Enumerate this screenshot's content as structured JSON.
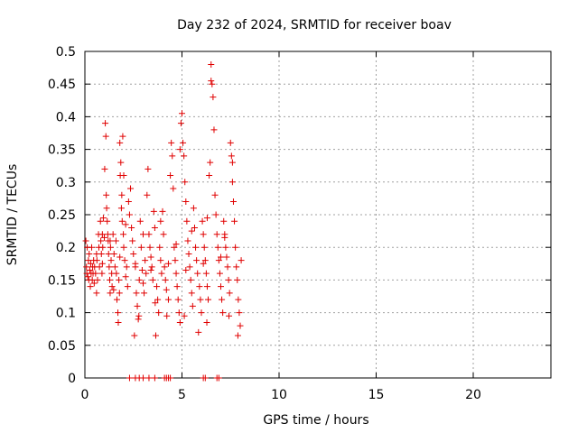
{
  "chart_data": {
    "type": "scatter",
    "title": "Day 232 of 2024, SRMTID for receiver boav",
    "xlabel": "GPS time / hours",
    "ylabel": "SRMTID / TECUs",
    "xlim": [
      0,
      24
    ],
    "ylim": [
      0,
      0.5
    ],
    "x_ticks": [
      0,
      5,
      10,
      15,
      20
    ],
    "x_tick_labels": [
      "0",
      "5",
      "10",
      "15",
      "20"
    ],
    "y_ticks": [
      0,
      0.05,
      0.1,
      0.15,
      0.2,
      0.25,
      0.3,
      0.35,
      0.4,
      0.45,
      0.5
    ],
    "y_tick_labels": [
      "0",
      "0.05",
      "0.1",
      "0.15",
      "0.2",
      "0.25",
      "0.3",
      "0.35",
      "0.4",
      "0.45",
      "0.5"
    ],
    "grid": true,
    "marker": "+",
    "color": "#e00000",
    "series": [
      {
        "points": [
          [
            0.05,
            0.21
          ],
          [
            0.08,
            0.17
          ],
          [
            0.1,
            0.16
          ],
          [
            0.12,
            0.2
          ],
          [
            0.15,
            0.155
          ],
          [
            0.18,
            0.18
          ],
          [
            0.2,
            0.15
          ],
          [
            0.22,
            0.19
          ],
          [
            0.25,
            0.165
          ],
          [
            0.28,
            0.14
          ],
          [
            0.3,
            0.175
          ],
          [
            0.32,
            0.16
          ],
          [
            0.35,
            0.2
          ],
          [
            0.38,
            0.15
          ],
          [
            0.4,
            0.17
          ],
          [
            0.42,
            0.16
          ],
          [
            0.45,
            0.18
          ],
          [
            0.48,
            0.145
          ],
          [
            0.5,
            0.17
          ],
          [
            0.55,
            0.16
          ],
          [
            0.6,
            0.19
          ],
          [
            0.62,
            0.18
          ],
          [
            0.65,
            0.15
          ],
          [
            0.7,
            0.22
          ],
          [
            0.72,
            0.2
          ],
          [
            0.75,
            0.17
          ],
          [
            0.8,
            0.24
          ],
          [
            0.82,
            0.21
          ],
          [
            0.85,
            0.19
          ],
          [
            0.88,
            0.16
          ],
          [
            0.9,
            0.22
          ],
          [
            0.92,
            0.2
          ],
          [
            0.95,
            0.245
          ],
          [
            1.0,
            0.215
          ],
          [
            1.02,
            0.32
          ],
          [
            1.05,
            0.39
          ],
          [
            1.08,
            0.37
          ],
          [
            1.1,
            0.28
          ],
          [
            1.12,
            0.26
          ],
          [
            1.15,
            0.24
          ],
          [
            1.18,
            0.22
          ],
          [
            1.2,
            0.21
          ],
          [
            1.22,
            0.19
          ],
          [
            1.25,
            0.17
          ],
          [
            1.28,
            0.15
          ],
          [
            1.3,
            0.13
          ],
          [
            1.32,
            0.2
          ],
          [
            1.35,
            0.18
          ],
          [
            1.38,
            0.16
          ],
          [
            1.4,
            0.14
          ],
          [
            1.45,
            0.22
          ],
          [
            1.5,
            0.19
          ],
          [
            1.55,
            0.17
          ],
          [
            1.6,
            0.21
          ],
          [
            1.62,
            0.16
          ],
          [
            1.65,
            0.12
          ],
          [
            1.7,
            0.1
          ],
          [
            1.72,
            0.085
          ],
          [
            1.75,
            0.15
          ],
          [
            1.78,
            0.13
          ],
          [
            1.8,
            0.36
          ],
          [
            1.82,
            0.31
          ],
          [
            1.85,
            0.33
          ],
          [
            1.88,
            0.26
          ],
          [
            1.9,
            0.28
          ],
          [
            1.92,
            0.24
          ],
          [
            1.95,
            0.37
          ],
          [
            1.98,
            0.22
          ],
          [
            2.0,
            0.2
          ],
          [
            2.05,
            0.18
          ],
          [
            2.1,
            0.155
          ],
          [
            2.15,
            0.17
          ],
          [
            2.2,
            0.14
          ],
          [
            2.25,
            0.27
          ],
          [
            2.3,
            0.25
          ],
          [
            2.35,
            0.29
          ],
          [
            2.4,
            0.23
          ],
          [
            2.45,
            0.21
          ],
          [
            2.5,
            0.19
          ],
          [
            2.55,
            0.065
          ],
          [
            2.6,
            0.17
          ],
          [
            2.65,
            0.13
          ],
          [
            2.7,
            0.11
          ],
          [
            2.75,
            0.09
          ],
          [
            2.8,
            0.15
          ],
          [
            2.85,
            0.24
          ],
          [
            2.9,
            0.2
          ],
          [
            2.95,
            0.165
          ],
          [
            3.0,
            0.145
          ],
          [
            3.05,
            0.13
          ],
          [
            3.1,
            0.18
          ],
          [
            3.15,
            0.16
          ],
          [
            3.2,
            0.28
          ],
          [
            3.25,
            0.32
          ],
          [
            3.3,
            0.22
          ],
          [
            3.35,
            0.2
          ],
          [
            3.4,
            0.185
          ],
          [
            3.45,
            0.17
          ],
          [
            3.5,
            0.15
          ],
          [
            3.55,
            0.255
          ],
          [
            3.6,
            0.23
          ],
          [
            3.65,
            0.065
          ],
          [
            3.7,
            0.14
          ],
          [
            3.75,
            0.12
          ],
          [
            3.8,
            0.1
          ],
          [
            3.85,
            0.2
          ],
          [
            3.9,
            0.18
          ],
          [
            3.95,
            0.16
          ],
          [
            4.0,
            0.255
          ],
          [
            4.05,
            0.22
          ],
          [
            4.1,
            0.17
          ],
          [
            4.15,
            0.15
          ],
          [
            4.2,
            0.135
          ],
          [
            4.3,
            0.12
          ],
          [
            4.4,
            0.31
          ],
          [
            4.45,
            0.36
          ],
          [
            4.5,
            0.34
          ],
          [
            4.55,
            0.29
          ],
          [
            4.6,
            0.2
          ],
          [
            4.65,
            0.18
          ],
          [
            4.7,
            0.16
          ],
          [
            4.75,
            0.14
          ],
          [
            4.8,
            0.12
          ],
          [
            4.85,
            0.1
          ],
          [
            4.9,
            0.085
          ],
          [
            4.95,
            0.39
          ],
          [
            5.0,
            0.405
          ],
          [
            5.05,
            0.36
          ],
          [
            5.1,
            0.34
          ],
          [
            5.15,
            0.3
          ],
          [
            5.2,
            0.27
          ],
          [
            5.25,
            0.24
          ],
          [
            5.3,
            0.21
          ],
          [
            5.35,
            0.19
          ],
          [
            5.4,
            0.17
          ],
          [
            5.45,
            0.15
          ],
          [
            5.5,
            0.13
          ],
          [
            5.55,
            0.11
          ],
          [
            5.6,
            0.26
          ],
          [
            5.65,
            0.23
          ],
          [
            5.7,
            0.2
          ],
          [
            5.75,
            0.18
          ],
          [
            5.8,
            0.16
          ],
          [
            5.85,
            0.07
          ],
          [
            5.9,
            0.14
          ],
          [
            5.95,
            0.12
          ],
          [
            6.0,
            0.1
          ],
          [
            6.05,
            0.24
          ],
          [
            6.1,
            0.22
          ],
          [
            6.15,
            0.2
          ],
          [
            6.2,
            0.18
          ],
          [
            6.25,
            0.16
          ],
          [
            6.3,
            0.14
          ],
          [
            6.35,
            0.12
          ],
          [
            6.4,
            0.31
          ],
          [
            6.45,
            0.33
          ],
          [
            6.5,
            0.48
          ],
          [
            6.55,
            0.45
          ],
          [
            6.6,
            0.43
          ],
          [
            6.65,
            0.38
          ],
          [
            6.7,
            0.28
          ],
          [
            6.75,
            0.25
          ],
          [
            6.8,
            0.22
          ],
          [
            6.85,
            0.2
          ],
          [
            6.9,
            0.18
          ],
          [
            6.95,
            0.16
          ],
          [
            7.0,
            0.14
          ],
          [
            7.05,
            0.12
          ],
          [
            7.1,
            0.1
          ],
          [
            7.15,
            0.24
          ],
          [
            7.2,
            0.22
          ],
          [
            7.25,
            0.2
          ],
          [
            7.3,
            0.185
          ],
          [
            7.35,
            0.17
          ],
          [
            7.4,
            0.15
          ],
          [
            7.45,
            0.13
          ],
          [
            7.5,
            0.36
          ],
          [
            7.55,
            0.34
          ],
          [
            7.6,
            0.3
          ],
          [
            7.65,
            0.27
          ],
          [
            7.7,
            0.24
          ],
          [
            7.75,
            0.2
          ],
          [
            7.8,
            0.17
          ],
          [
            7.85,
            0.15
          ],
          [
            7.9,
            0.12
          ],
          [
            7.95,
            0.1
          ],
          [
            8.0,
            0.08
          ],
          [
            8.05,
            0.18
          ],
          [
            7.88,
            0.065
          ],
          [
            0.6,
            0.13
          ],
          [
            1.48,
            0.135
          ],
          [
            2.78,
            0.095
          ],
          [
            3.62,
            0.115
          ],
          [
            4.22,
            0.095
          ],
          [
            5.12,
            0.095
          ],
          [
            6.28,
            0.085
          ],
          [
            7.42,
            0.095
          ],
          [
            1.3,
            0.21
          ],
          [
            2.1,
            0.235
          ],
          [
            3.0,
            0.22
          ],
          [
            3.9,
            0.24
          ],
          [
            4.7,
            0.205
          ],
          [
            5.5,
            0.225
          ],
          [
            6.3,
            0.245
          ],
          [
            7.2,
            0.215
          ],
          [
            0.9,
            0.175
          ],
          [
            1.8,
            0.185
          ],
          [
            2.6,
            0.175
          ],
          [
            3.4,
            0.165
          ],
          [
            4.3,
            0.175
          ],
          [
            5.2,
            0.165
          ],
          [
            6.1,
            0.175
          ],
          [
            7.0,
            0.185
          ],
          [
            2.0,
            0.31
          ],
          [
            4.9,
            0.35
          ],
          [
            6.5,
            0.455
          ],
          [
            7.6,
            0.33
          ]
        ]
      }
    ],
    "zero_points_x": [
      2.3,
      2.6,
      2.8,
      3.0,
      3.3,
      3.6,
      4.1,
      4.2,
      4.3,
      4.4,
      6.1,
      6.2,
      6.8,
      6.9
    ]
  }
}
